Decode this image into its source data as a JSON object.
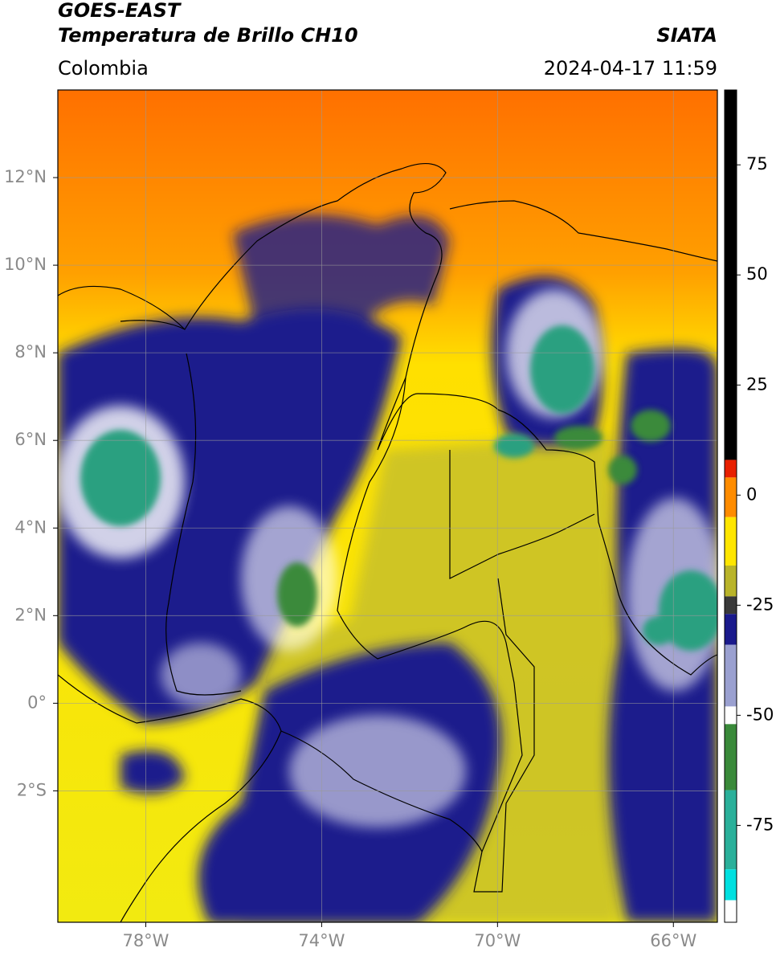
{
  "header": {
    "title": "GOES-EAST",
    "subtitle": "Temperatura de Brillo CH10",
    "source": "SIATA",
    "region": "Colombia",
    "datetime": "2024-04-17 11:59"
  },
  "chart_data": {
    "type": "map",
    "xlim": [
      -80,
      -65
    ],
    "ylim": [
      -5,
      14
    ],
    "xticks": [
      {
        "value": -78,
        "label": "78°W"
      },
      {
        "value": -74,
        "label": "74°W"
      },
      {
        "value": -70,
        "label": "70°W"
      },
      {
        "value": -66,
        "label": "66°W"
      }
    ],
    "yticks": [
      {
        "value": 12,
        "label": "12°N"
      },
      {
        "value": 10,
        "label": "10°N"
      },
      {
        "value": 8,
        "label": "8°N"
      },
      {
        "value": 6,
        "label": "6°N"
      },
      {
        "value": 4,
        "label": "4°N"
      },
      {
        "value": 2,
        "label": "2°N"
      },
      {
        "value": 0,
        "label": "0°"
      },
      {
        "value": -2,
        "label": "2°S"
      }
    ],
    "grid": true,
    "colorbar": {
      "lim": [
        -97,
        92
      ],
      "ticks": [
        75,
        50,
        25,
        0,
        -25,
        -50,
        -75
      ],
      "segments": [
        {
          "from": 8,
          "to": 92,
          "color": "#000000"
        },
        {
          "from": 4,
          "to": 8,
          "color": "#e82000"
        },
        {
          "from": -5,
          "to": 4,
          "color": "#ff8c00"
        },
        {
          "from": -16,
          "to": -5,
          "color": "#ffe600"
        },
        {
          "from": -23,
          "to": -16,
          "color": "#b9b42a"
        },
        {
          "from": -27,
          "to": -23,
          "color": "#3a3a3a"
        },
        {
          "from": -34,
          "to": -27,
          "color": "#1a1a8c"
        },
        {
          "from": -48,
          "to": -34,
          "color": "#9aa0d0"
        },
        {
          "from": -52,
          "to": -48,
          "color": "#ffffff"
        },
        {
          "from": -67,
          "to": -52,
          "color": "#3a8a3a"
        },
        {
          "from": -85,
          "to": -67,
          "color": "#2ab09a"
        },
        {
          "from": -92,
          "to": -85,
          "color": "#00e0e0"
        },
        {
          "from": -97,
          "to": -92,
          "color": "#ffffff"
        }
      ]
    }
  }
}
